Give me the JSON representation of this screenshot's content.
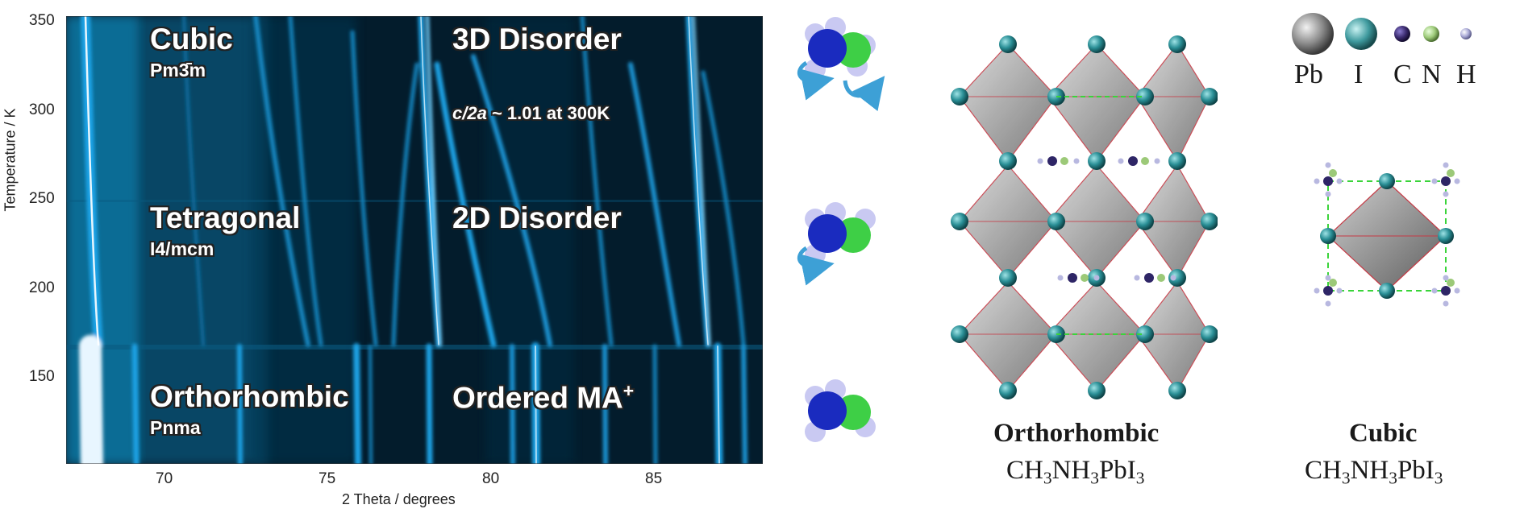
{
  "chart": {
    "y_title": "Temperature / K",
    "x_title": "2 Theta / degrees",
    "y_ticks": [
      "350",
      "300",
      "250",
      "200",
      "150"
    ],
    "x_ticks": [
      "70",
      "75",
      "80",
      "85"
    ],
    "phases": [
      {
        "name": "Cubic",
        "space_group": "Pm3̄m",
        "disorder": "3D Disorder"
      },
      {
        "name": "Tetragonal",
        "space_group": "I4/mcm",
        "disorder": "2D Disorder"
      },
      {
        "name": "Orthorhombic",
        "space_group": "Pnma",
        "disorder": "Ordered MA",
        "disorder_sup": "+"
      }
    ],
    "ratio_note": {
      "var": "c/2a",
      "rest": " ~ 1.01 at 300K"
    }
  },
  "legend": {
    "elements": [
      {
        "symbol": "Pb",
        "color": "#8a8a8a"
      },
      {
        "symbol": "I",
        "color": "#3f9a9e"
      },
      {
        "symbol": "C",
        "color": "#3a2a6e"
      },
      {
        "symbol": "N",
        "color": "#9cc978"
      },
      {
        "symbol": "H",
        "color": "#a9a9d6"
      }
    ]
  },
  "structures": [
    {
      "title": "Orthorhombic",
      "formula": [
        "CH",
        "3",
        "NH",
        "3",
        "PbI",
        "3"
      ]
    },
    {
      "title": "Cubic",
      "formula": [
        "CH",
        "3",
        "NH",
        "3",
        "PbI",
        "3"
      ]
    }
  ]
}
